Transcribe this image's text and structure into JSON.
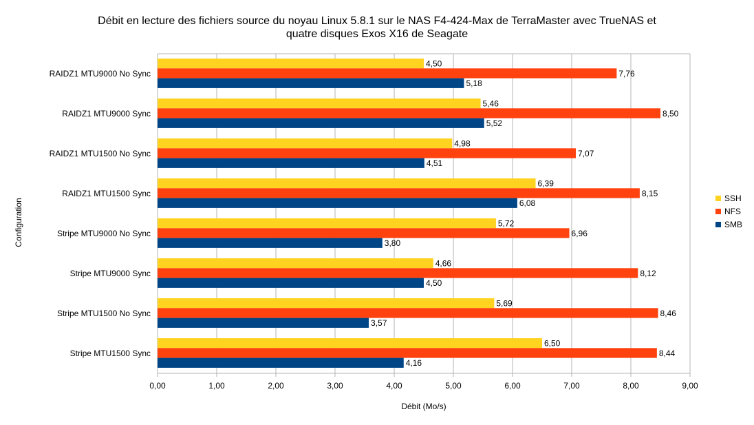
{
  "chart_data": {
    "type": "bar",
    "orientation": "horizontal",
    "title_lines": [
      "Débit en lecture des fichiers source du noyau Linux 5.8.1 sur le NAS F4-424-Max de TerraMaster avec TrueNAS et",
      "quatre disques Exos X16 de Seagate"
    ],
    "xlabel": "Débit (Mo/s)",
    "ylabel": "Configuration",
    "xlim": [
      0,
      9
    ],
    "xticks": [
      "0,00",
      "1,00",
      "2,00",
      "3,00",
      "4,00",
      "5,00",
      "6,00",
      "7,00",
      "8,00",
      "9,00"
    ],
    "grid": true,
    "legend_position": "right",
    "categories": [
      "RAIDZ1 MTU9000 No Sync",
      "RAIDZ1 MTU9000 Sync",
      "RAIDZ1 MTU1500 No Sync",
      "RAIDZ1 MTU1500 Sync",
      "Stripe MTU9000 No Sync",
      "Stripe MTU9000 Sync",
      "Stripe MTU1500 No Sync",
      "Stripe MTU1500 Sync"
    ],
    "series": [
      {
        "name": "SSH",
        "color": "#ffd320",
        "values": [
          4.5,
          5.46,
          4.98,
          6.39,
          5.72,
          4.66,
          5.69,
          6.5
        ],
        "labels": [
          "4,50",
          "5,46",
          "4,98",
          "6,39",
          "5,72",
          "4,66",
          "5,69",
          "6,50"
        ]
      },
      {
        "name": "NFS",
        "color": "#ff420e",
        "values": [
          7.76,
          8.5,
          7.07,
          8.15,
          6.96,
          8.12,
          8.46,
          8.44
        ],
        "labels": [
          "7,76",
          "8,50",
          "7,07",
          "8,15",
          "6,96",
          "8,12",
          "8,46",
          "8,44"
        ]
      },
      {
        "name": "SMB",
        "color": "#004586",
        "values": [
          5.18,
          5.52,
          4.51,
          6.08,
          3.8,
          4.5,
          3.57,
          4.16
        ],
        "labels": [
          "5,18",
          "5,52",
          "4,51",
          "6,08",
          "3,80",
          "4,50",
          "3,57",
          "4,16"
        ]
      }
    ]
  }
}
